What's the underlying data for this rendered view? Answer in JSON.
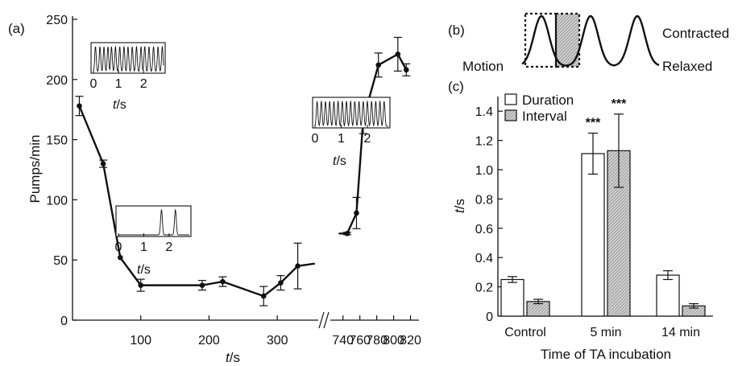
{
  "chart_data": [
    {
      "panel": "(a)",
      "type": "line",
      "xlabel": "t/s",
      "ylabel": "Pumps/min",
      "ylim": [
        0,
        250
      ],
      "yticks": [
        0,
        50,
        100,
        150,
        200,
        250
      ],
      "x_segments": [
        {
          "range": [
            0,
            360
          ],
          "ticks": [
            100,
            200,
            300
          ]
        },
        {
          "range": [
            725,
            830
          ],
          "ticks": [
            740,
            760,
            780,
            800,
            820
          ]
        }
      ],
      "axis_break_label": "//",
      "series": [
        {
          "segment": 0,
          "points": [
            {
              "x": 10,
              "y": 178,
              "err": 8
            },
            {
              "x": 45,
              "y": 130,
              "err": 3
            },
            {
              "x": 70,
              "y": 52,
              "err": 0
            },
            {
              "x": 100,
              "y": 29,
              "err": 5
            },
            {
              "x": 190,
              "y": 29,
              "err": 4
            },
            {
              "x": 220,
              "y": 32,
              "err": 4
            },
            {
              "x": 280,
              "y": 20,
              "err": 8
            },
            {
              "x": 305,
              "y": 31,
              "err": 6
            },
            {
              "x": 330,
              "y": 45,
              "err": 19
            },
            {
              "x": 355,
              "y": 47,
              "err": 0
            }
          ]
        },
        {
          "segment": 1,
          "points": [
            {
              "x": 735,
              "y": 72,
              "err": 0
            },
            {
              "x": 745,
              "y": 72,
              "err": 1
            },
            {
              "x": 756,
              "y": 89,
              "err": 13
            },
            {
              "x": 764,
              "y": 167,
              "err": 12
            },
            {
              "x": 782,
              "y": 212,
              "err": 10
            },
            {
              "x": 805,
              "y": 221,
              "err": 14
            },
            {
              "x": 815,
              "y": 208,
              "err": 5
            }
          ]
        }
      ],
      "insets": [
        {
          "xticks": [
            "0",
            "1",
            "2"
          ],
          "xlabel": "t/s",
          "peaks": [
            0.08,
            0.26,
            0.42,
            0.58,
            0.72,
            0.88,
            1.05,
            1.22,
            1.38,
            1.55,
            1.72,
            1.9,
            2.05,
            2.22,
            2.4,
            2.58,
            2.75
          ]
        },
        {
          "xticks": [
            "0",
            "1",
            "2"
          ],
          "xlabel": "t/s",
          "peaks": [
            1.7,
            2.25
          ]
        },
        {
          "xticks": [
            "0",
            "1",
            "2"
          ],
          "xlabel": "t/s",
          "peaks": [
            0.08,
            0.24,
            0.4,
            0.56,
            0.72,
            0.88,
            1.04,
            1.2,
            1.36,
            1.52,
            1.68,
            1.84,
            2.0,
            2.16,
            2.32,
            2.48,
            2.64
          ]
        }
      ]
    },
    {
      "panel": "(b)",
      "type": "line",
      "labels": {
        "motion": "Motion",
        "contracted": "Contracted",
        "relaxed": "Relaxed"
      }
    },
    {
      "panel": "(c)",
      "type": "bar",
      "categories": [
        "Control",
        "5 min",
        "14 min"
      ],
      "series": [
        {
          "name": "Duration",
          "values": [
            0.25,
            1.11,
            0.28
          ],
          "errors": [
            0.02,
            0.14,
            0.03
          ],
          "color": "#ffffff"
        },
        {
          "name": "Interval",
          "values": [
            0.1,
            1.13,
            0.07
          ],
          "errors": [
            0.015,
            0.25,
            0.015
          ],
          "color": "#c8c8c8",
          "pattern": "hatched"
        }
      ],
      "significance": [
        {
          "category": "5 min",
          "series": "Duration",
          "label": "***"
        },
        {
          "category": "5 min",
          "series": "Interval",
          "label": "***"
        }
      ],
      "xlabel": "Time of TA incubation",
      "ylabel": "t/s",
      "ylim": [
        0,
        1.5
      ],
      "yticks": [
        "0",
        "0.2",
        "0.4",
        "0.6",
        "0.8",
        "1.0",
        "1.2",
        "1.4"
      ],
      "legend": "top-left"
    }
  ]
}
